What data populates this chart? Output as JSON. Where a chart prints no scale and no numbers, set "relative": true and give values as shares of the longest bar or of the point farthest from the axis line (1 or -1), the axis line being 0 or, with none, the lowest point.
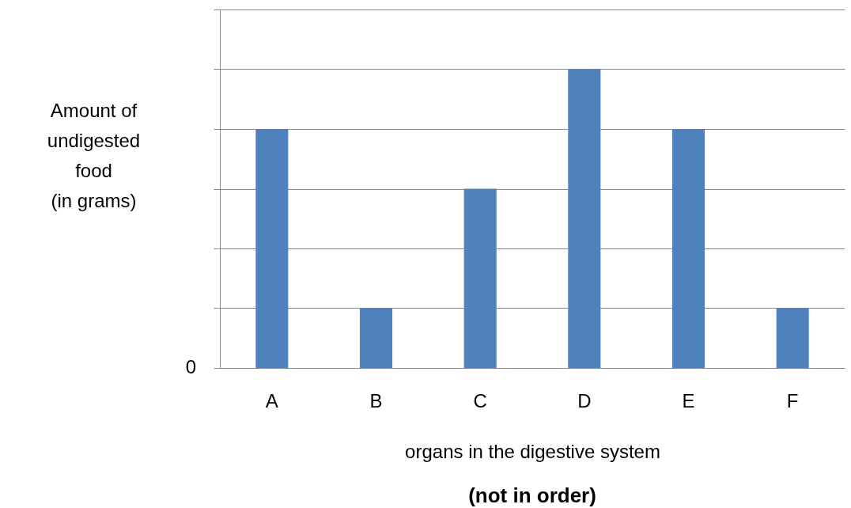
{
  "chart_data": {
    "type": "bar",
    "relative": true,
    "categories": [
      "A",
      "B",
      "C",
      "D",
      "E",
      "F"
    ],
    "values": [
      0.8,
      0.2,
      0.6,
      1,
      0.8,
      0.2
    ],
    "color": "#4f81bd",
    "grid": "y",
    "ylabel": "Amount of\nundigested\nfood\n(in grams)",
    "xlabel": "organs in the digestive system",
    "annotations": [
      "0",
      "(not in order)"
    ]
  }
}
